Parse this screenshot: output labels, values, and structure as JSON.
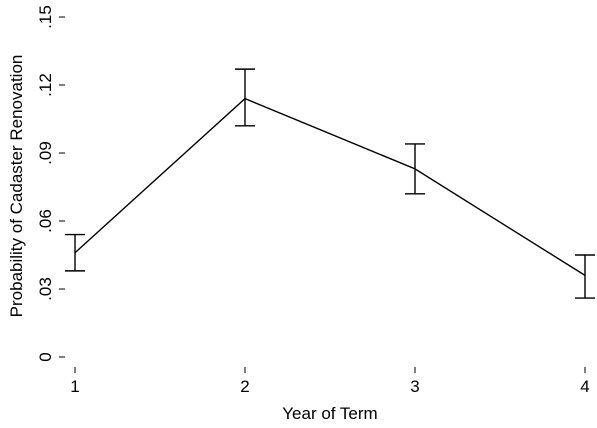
{
  "chart_data": {
    "type": "line",
    "title": "",
    "xlabel": "Year of Term",
    "ylabel": "Probability of Cadaster Renovation",
    "x": [
      1,
      2,
      3,
      4
    ],
    "x_tick_labels": [
      "1",
      "2",
      "3",
      "4"
    ],
    "y_ticks": [
      0,
      0.03,
      0.06,
      0.09,
      0.12,
      0.15
    ],
    "y_tick_labels": [
      "0",
      ".03",
      ".06",
      ".09",
      ".12",
      ".15"
    ],
    "ylim": [
      0,
      0.15
    ],
    "xlim": [
      1,
      4
    ],
    "grid": false,
    "legend": "none",
    "series": [
      {
        "values": [
          0.046,
          0.114,
          0.083,
          0.036
        ],
        "ci_lower": [
          0.038,
          0.102,
          0.072,
          0.026
        ],
        "ci_upper": [
          0.054,
          0.127,
          0.094,
          0.045
        ]
      }
    ],
    "colors": {
      "line": "#000000",
      "axis": "#000000",
      "background": "#ffffff"
    }
  }
}
